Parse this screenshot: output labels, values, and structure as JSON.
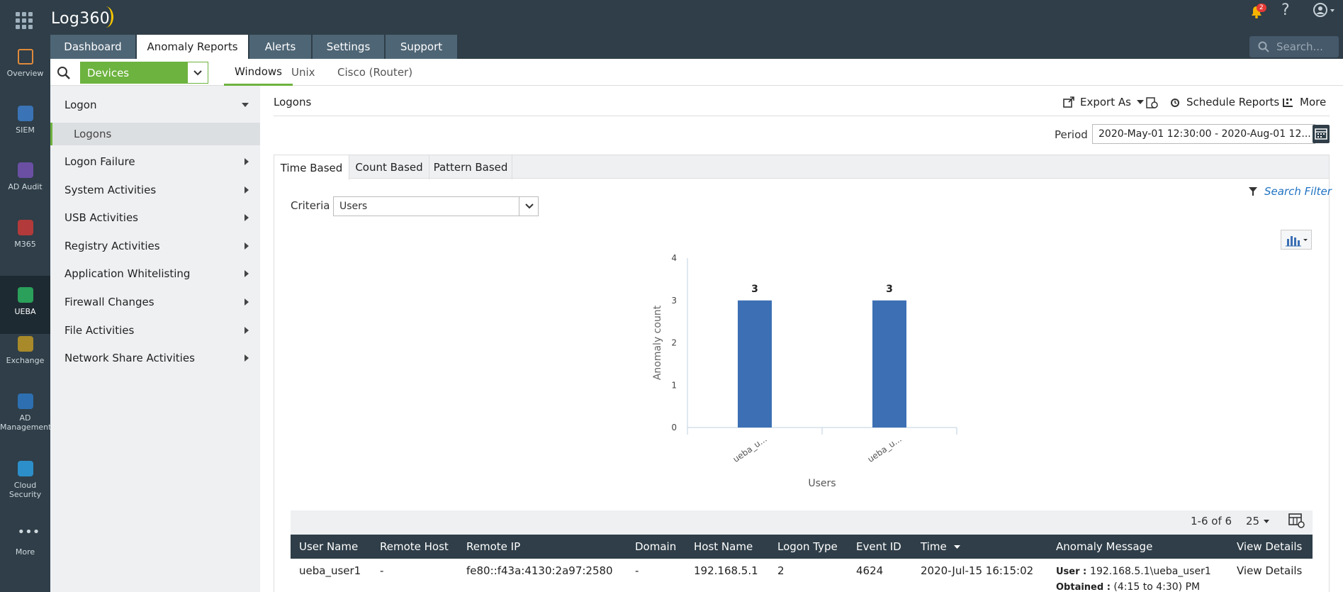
{
  "app": {
    "title": "Log360",
    "notifications": "2",
    "help": "?"
  },
  "main_tabs": [
    {
      "label": "Dashboard"
    },
    {
      "label": "Anomaly Reports"
    },
    {
      "label": "Alerts"
    },
    {
      "label": "Settings"
    },
    {
      "label": "Support"
    }
  ],
  "top_search": {
    "placeholder": "Search..."
  },
  "rail": [
    {
      "label": "Overview",
      "icon": "overview-icon"
    },
    {
      "label": "SIEM",
      "icon": "siem-icon"
    },
    {
      "label": "AD Audit",
      "icon": "ad-audit-icon"
    },
    {
      "label": "M365",
      "icon": "m365-icon"
    },
    {
      "label": "UEBA",
      "icon": "ueba-icon"
    },
    {
      "label": "Exchange",
      "icon": "exchange-icon"
    },
    {
      "label": "AD Management",
      "icon": "ad-management-icon"
    },
    {
      "label": "Cloud Security",
      "icon": "cloud-security-icon"
    },
    {
      "label": "More",
      "icon": "more-icon"
    }
  ],
  "subbar": {
    "device_select": "Devices",
    "tabs": [
      {
        "label": "Windows"
      },
      {
        "label": "Unix"
      },
      {
        "label": "Cisco (Router)"
      }
    ]
  },
  "sidebar": {
    "groups": [
      {
        "label": "Logon"
      },
      {
        "label": "Logon Failure"
      },
      {
        "label": "System Activities"
      },
      {
        "label": "USB Activities"
      },
      {
        "label": "Registry Activities"
      },
      {
        "label": "Application Whitelisting"
      },
      {
        "label": "Firewall Changes"
      },
      {
        "label": "File Activities"
      },
      {
        "label": "Network Share Activities"
      }
    ],
    "sub_item": "Logons"
  },
  "report": {
    "title": "Logons",
    "actions": {
      "export": "Export As",
      "schedule": "Schedule Reports",
      "more": "More"
    },
    "period_label": "Period",
    "period_value": "2020-May-01 12:30:00 - 2020-Aug-01 12...",
    "tabs": [
      {
        "label": "Time Based"
      },
      {
        "label": "Count Based"
      },
      {
        "label": "Pattern Based"
      }
    ],
    "search_filter": "Search Filter",
    "criteria_label": "Criteria",
    "criteria_value": "Users"
  },
  "chart_data": {
    "type": "bar",
    "categories": [
      "ueba_u...",
      "ueba_u..."
    ],
    "values": [
      3,
      3
    ],
    "xlabel": "Users",
    "ylabel": "Anomaly count",
    "ylim": [
      0,
      4
    ],
    "yticks": [
      "0",
      "1",
      "2",
      "3",
      "4"
    ],
    "bar_color": "#3c6fb3"
  },
  "table": {
    "page_info": "1-6 of 6",
    "page_size": "25",
    "columns": [
      "User Name",
      "Remote Host",
      "Remote IP",
      "Domain",
      "Host Name",
      "Logon Type",
      "Event ID",
      "Time",
      "Anomaly Message",
      "View Details"
    ],
    "rows": [
      {
        "user_name": "ueba_user1",
        "remote_host": "-",
        "remote_ip": "fe80::f43a:4130:2a97:2580",
        "domain": "-",
        "host_name": "192.168.5.1",
        "logon_type": "2",
        "event_id": "4624",
        "time": "2020-Jul-15 16:15:02",
        "message_user_label": "User :",
        "message_user": "192.168.5.1\\ueba_user1",
        "message_obtained_label": "Obtained :",
        "message_obtained": "(4:15 to 4:30) PM",
        "view_details": "View Details"
      }
    ]
  },
  "colors": {
    "accent": "#6db33f",
    "header": "#2f3e48",
    "link": "#1f72c2"
  }
}
